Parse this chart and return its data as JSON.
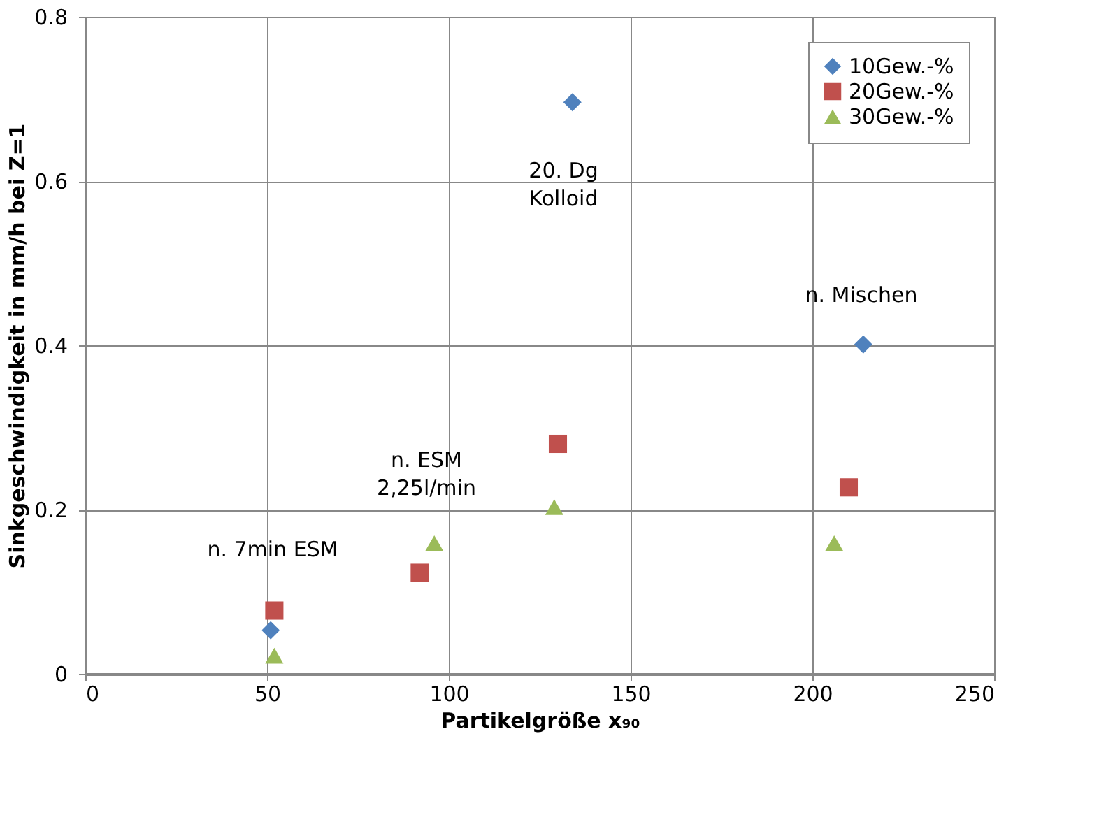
{
  "chart_data": {
    "type": "scatter",
    "xlabel": "Partikelgröße x₉₀",
    "ylabel": "Sinkgeschwindigkeit in mm/h bei Z=1",
    "xlim": [
      0,
      250
    ],
    "xticks": [
      0,
      50,
      100,
      150,
      200,
      250
    ],
    "ylim": [
      0,
      0.8
    ],
    "yticks": [
      0,
      0.2,
      0.4,
      0.6,
      0.8
    ],
    "grid": true,
    "legend": "top right",
    "series": [
      {
        "name": "10Gew.-%",
        "color": "#4f81bd",
        "marker": "diamond",
        "x": [
          51,
          134,
          214
        ],
        "values": [
          0.053,
          0.696,
          0.401
        ]
      },
      {
        "name": "20Gew.-%",
        "color": "#c0504d",
        "marker": "square",
        "x": [
          52,
          92,
          130,
          210
        ],
        "values": [
          0.077,
          0.123,
          0.28,
          0.227
        ]
      },
      {
        "name": "30Gew.-%",
        "color": "#9bbb59",
        "marker": "triangle",
        "x": [
          52,
          96,
          129,
          206
        ],
        "values": [
          0.022,
          0.159,
          0.203,
          0.159
        ]
      }
    ],
    "annotations": [
      "20. Dg\nKolloid",
      "n. Mischen",
      "n. ESM\n2,25l/min",
      "n. 7min ESM"
    ]
  }
}
